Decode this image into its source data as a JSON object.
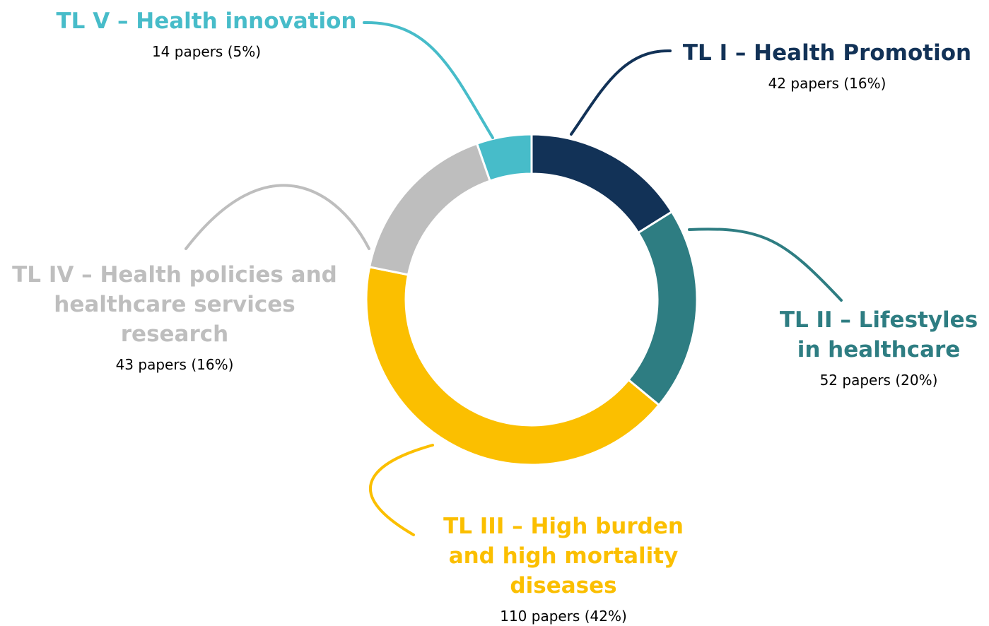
{
  "chart_data": {
    "type": "donut",
    "categories": [
      "TL I – Health Promotion",
      "TL II – Lifestyles in healthcare",
      "TL III – High burden and high mortality diseases",
      "TL IV – Health policies and healthcare services research",
      "TL V – Health innovation"
    ],
    "values": [
      42,
      52,
      110,
      43,
      14
    ],
    "value_labels": [
      "42 papers (16%)",
      "52 papers (20%)",
      "110 papers (42%)",
      "43 papers (16%)",
      "14 papers (5%)"
    ],
    "colors": [
      "#123257",
      "#2e7d82",
      "#fbbf00",
      "#bebebe",
      "#47bcc9"
    ]
  }
}
